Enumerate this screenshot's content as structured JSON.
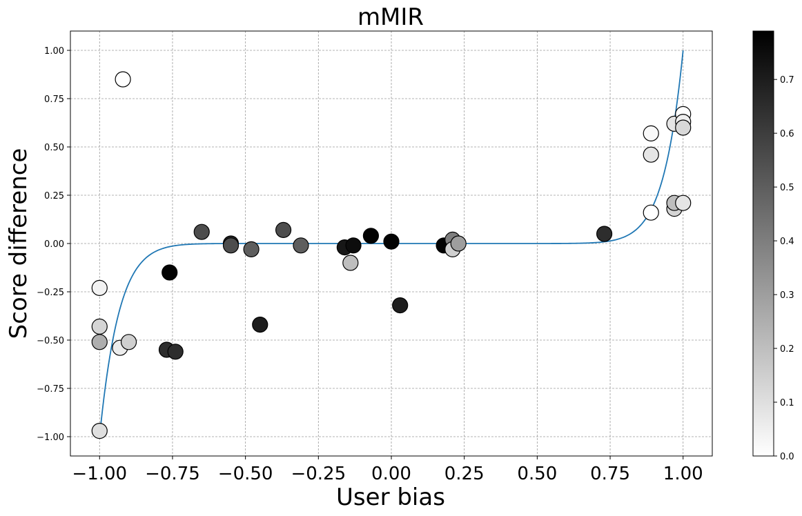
{
  "chart_data": {
    "type": "scatter",
    "title": "mMIR",
    "xlabel": "User bias",
    "ylabel": "Score difference",
    "xlim": [
      -1.1,
      1.1
    ],
    "ylim": [
      -1.1,
      1.1
    ],
    "grid": true,
    "x_ticks": [
      -1.0,
      -0.75,
      -0.5,
      -0.25,
      0.0,
      0.25,
      0.5,
      0.75,
      1.0
    ],
    "x_tick_labels": [
      "−1.00",
      "−0.75",
      "−0.50",
      "−0.25",
      "0.00",
      "0.25",
      "0.50",
      "0.75",
      "1.00"
    ],
    "y_ticks": [
      -1.0,
      -0.75,
      -0.5,
      -0.25,
      0.0,
      0.25,
      0.5,
      0.75,
      1.0
    ],
    "y_tick_labels": [
      "−1.00",
      "−0.75",
      "−0.50",
      "−0.25",
      "0.00",
      "0.25",
      "0.50",
      "0.75",
      "1.00"
    ],
    "colorbar": {
      "range": [
        0.0,
        0.79
      ],
      "colormap": "Greys",
      "ticks": [
        0.0,
        0.1,
        0.2,
        0.3,
        0.4,
        0.5,
        0.6,
        0.7
      ],
      "tick_labels": [
        "0.0",
        "0.1",
        "0.2",
        "0.3",
        "0.4",
        "0.5",
        "0.6",
        "0.7"
      ]
    },
    "points": [
      {
        "x": -0.92,
        "y": 0.85,
        "c": 0.0
      },
      {
        "x": -1.0,
        "y": -0.23,
        "c": 0.04
      },
      {
        "x": -1.0,
        "y": -0.43,
        "c": 0.13
      },
      {
        "x": -1.0,
        "y": -0.51,
        "c": 0.25
      },
      {
        "x": -0.93,
        "y": -0.54,
        "c": 0.06
      },
      {
        "x": -0.9,
        "y": -0.51,
        "c": 0.15
      },
      {
        "x": -1.0,
        "y": -0.97,
        "c": 0.1
      },
      {
        "x": -0.76,
        "y": -0.15,
        "c": 0.78
      },
      {
        "x": -0.77,
        "y": -0.55,
        "c": 0.65
      },
      {
        "x": -0.74,
        "y": -0.56,
        "c": 0.65
      },
      {
        "x": -0.65,
        "y": 0.06,
        "c": 0.55
      },
      {
        "x": -0.55,
        "y": 0.0,
        "c": 0.68
      },
      {
        "x": -0.55,
        "y": -0.01,
        "c": 0.55
      },
      {
        "x": -0.48,
        "y": -0.03,
        "c": 0.5
      },
      {
        "x": -0.45,
        "y": -0.42,
        "c": 0.7
      },
      {
        "x": -0.37,
        "y": 0.07,
        "c": 0.55
      },
      {
        "x": -0.31,
        "y": -0.01,
        "c": 0.5
      },
      {
        "x": -0.16,
        "y": -0.02,
        "c": 0.72
      },
      {
        "x": -0.14,
        "y": -0.1,
        "c": 0.2
      },
      {
        "x": -0.13,
        "y": -0.01,
        "c": 0.75
      },
      {
        "x": -0.07,
        "y": 0.04,
        "c": 0.78
      },
      {
        "x": 0.0,
        "y": 0.01,
        "c": 0.78
      },
      {
        "x": 0.03,
        "y": -0.32,
        "c": 0.7
      },
      {
        "x": 0.18,
        "y": -0.01,
        "c": 0.78
      },
      {
        "x": 0.21,
        "y": 0.02,
        "c": 0.4
      },
      {
        "x": 0.21,
        "y": -0.03,
        "c": 0.15
      },
      {
        "x": 0.23,
        "y": 0.0,
        "c": 0.3
      },
      {
        "x": 0.73,
        "y": 0.05,
        "c": 0.65
      },
      {
        "x": 0.89,
        "y": 0.57,
        "c": 0.02
      },
      {
        "x": 0.89,
        "y": 0.46,
        "c": 0.08
      },
      {
        "x": 0.89,
        "y": 0.16,
        "c": 0.0
      },
      {
        "x": 0.97,
        "y": 0.62,
        "c": 0.08
      },
      {
        "x": 0.97,
        "y": 0.18,
        "c": 0.13
      },
      {
        "x": 0.97,
        "y": 0.21,
        "c": 0.2
      },
      {
        "x": 1.0,
        "y": 0.67,
        "c": 0.0
      },
      {
        "x": 1.0,
        "y": 0.63,
        "c": 0.05
      },
      {
        "x": 1.0,
        "y": 0.6,
        "c": 0.12
      },
      {
        "x": 1.0,
        "y": 0.21,
        "c": 0.08
      }
    ],
    "fit_line": {
      "model": "y = x^15",
      "exponent": 15,
      "x_range": [
        -1.0,
        1.0
      ],
      "color": "#1f77b4"
    }
  }
}
